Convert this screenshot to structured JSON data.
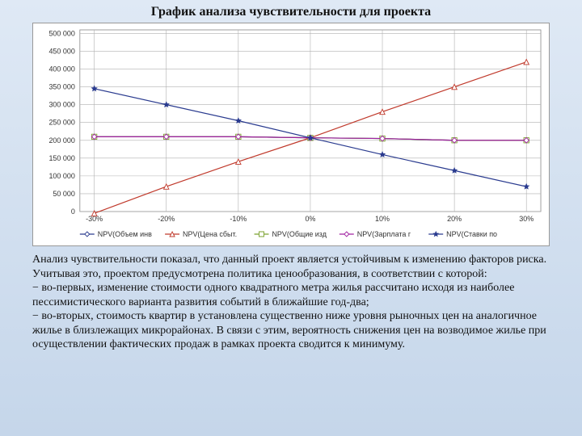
{
  "title": "График анализа чувствительности для проекта",
  "chart": {
    "type": "line",
    "background_color": "#ffffff",
    "grid_color": "#b0b0b0",
    "border_color": "#888888",
    "x": {
      "ticks": [
        -30,
        -20,
        -10,
        0,
        10,
        20,
        30
      ],
      "tick_suffix": "%",
      "min": -32,
      "max": 32
    },
    "y": {
      "ticks": [
        0,
        50000,
        100000,
        150000,
        200000,
        250000,
        300000,
        350000,
        400000,
        450000,
        500000
      ],
      "tick_format": "space-thousands",
      "min": 0,
      "max": 510000
    },
    "series": [
      {
        "name": "NPV(Объем инв",
        "color": "#2a3b8f",
        "marker": "diamond",
        "marker_fill": "#ffffff",
        "line_width": 1.2,
        "x": [
          -30,
          -20,
          -10,
          0,
          10,
          20,
          30
        ],
        "y": [
          210000,
          210000,
          210000,
          207000,
          205000,
          200000,
          200000
        ]
      },
      {
        "name": "NPV(Цена сбыт.",
        "color": "#c0392b",
        "marker": "triangle",
        "marker_fill": "#ffffff",
        "line_width": 1.2,
        "x": [
          -30,
          -20,
          -10,
          0,
          10,
          20,
          30
        ],
        "y": [
          -5000,
          70000,
          140000,
          207000,
          280000,
          350000,
          420000
        ]
      },
      {
        "name": "NPV(Общие изд",
        "color": "#7aa02c",
        "marker": "square",
        "marker_fill": "#ffffff",
        "line_width": 1.2,
        "x": [
          -30,
          -20,
          -10,
          0,
          10,
          20,
          30
        ],
        "y": [
          210000,
          210000,
          210000,
          207000,
          205000,
          200000,
          200000
        ]
      },
      {
        "name": "NPV(Зарплата г",
        "color": "#a020a0",
        "marker": "diamond",
        "marker_fill": "#ffffff",
        "line_width": 1.2,
        "x": [
          -30,
          -20,
          -10,
          0,
          10,
          20,
          30
        ],
        "y": [
          210000,
          210000,
          210000,
          207000,
          205000,
          200000,
          200000
        ]
      },
      {
        "name": "NPV(Ставки по",
        "color": "#2a3b8f",
        "marker": "star",
        "marker_fill": "#2a3b8f",
        "line_width": 1.2,
        "x": [
          -30,
          -20,
          -10,
          0,
          10,
          20,
          30
        ],
        "y": [
          345000,
          300000,
          255000,
          207000,
          160000,
          115000,
          70000
        ]
      }
    ],
    "label_fontsize": 9,
    "legend_fontsize": 10
  },
  "body": {
    "p1": "Анализ чувствительности показал, что данный проект является устойчивым к изменению факторов риска. Учитывая это, проектом предусмотрена политика ценообразования, в соответствии с которой:",
    "p2": "− во-первых, изменение стоимости одного квадратного метра жилья рассчитано исходя из наиболее пессимистического варианта развития событий в ближайшие год-два;",
    "p3": "− во-вторых, стоимость квартир в  установлена существенно ниже уровня рыночных  цен на аналогичное жилье в близлежащих микрорайонах. В связи с этим, вероятность снижения цен на возводимое жилье при осуществлении фактических продаж в рамках проекта сводится к минимуму."
  }
}
